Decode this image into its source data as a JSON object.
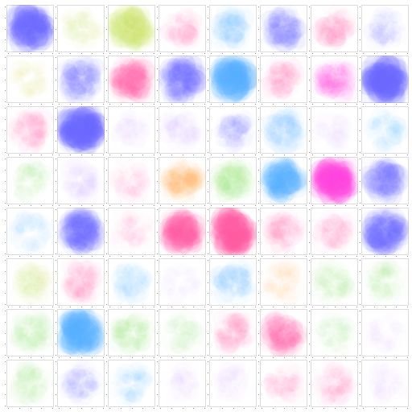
{
  "chart_data": {
    "type": "heatmap",
    "layout": "small-multiples",
    "grid": {
      "rows": 8,
      "cols": 8
    },
    "title": "",
    "xlabel": "",
    "ylabel": "",
    "axes": {
      "ticks_visible": true,
      "tick_labels_visible": false,
      "frame": true
    },
    "palette": {
      "blue": "#6f6cff",
      "sky": "#58b3ff",
      "pink": "#ff5fa8",
      "magenta": "#ff47e1",
      "lime": "#cfe66a",
      "green": "#8fe36b",
      "orange": "#ffb25a",
      "lavender": "#c9a9ff"
    },
    "panels": [
      {
        "row": 0,
        "col": 0,
        "color": "#6f6cff",
        "intensity": 0.72
      },
      {
        "row": 0,
        "col": 1,
        "color": "#cfe66a",
        "intensity": 0.1
      },
      {
        "row": 0,
        "col": 2,
        "color": "#cfe66a",
        "intensity": 0.55
      },
      {
        "row": 0,
        "col": 3,
        "color": "#ff5fa8",
        "intensity": 0.12
      },
      {
        "row": 0,
        "col": 4,
        "color": "#58b3ff",
        "intensity": 0.18
      },
      {
        "row": 0,
        "col": 5,
        "color": "#6f6cff",
        "intensity": 0.35
      },
      {
        "row": 0,
        "col": 6,
        "color": "#ff5fa8",
        "intensity": 0.18
      },
      {
        "row": 0,
        "col": 7,
        "color": "#6f6cff",
        "intensity": 0.08
      },
      {
        "row": 1,
        "col": 0,
        "color": "#cfe66a",
        "intensity": 0.07
      },
      {
        "row": 1,
        "col": 1,
        "color": "#6f6cff",
        "intensity": 0.35
      },
      {
        "row": 1,
        "col": 2,
        "color": "#ff5fa8",
        "intensity": 0.45
      },
      {
        "row": 1,
        "col": 3,
        "color": "#6f6cff",
        "intensity": 0.55
      },
      {
        "row": 1,
        "col": 4,
        "color": "#58b3ff",
        "intensity": 0.75
      },
      {
        "row": 1,
        "col": 5,
        "color": "#ff5fa8",
        "intensity": 0.15
      },
      {
        "row": 1,
        "col": 6,
        "color": "#ff47e1",
        "intensity": 0.28
      },
      {
        "row": 1,
        "col": 7,
        "color": "#6f6cff",
        "intensity": 0.88
      },
      {
        "row": 2,
        "col": 0,
        "color": "#ff5fa8",
        "intensity": 0.16
      },
      {
        "row": 2,
        "col": 1,
        "color": "#6f6cff",
        "intensity": 0.9
      },
      {
        "row": 2,
        "col": 2,
        "color": "#c9a9ff",
        "intensity": 0.06
      },
      {
        "row": 2,
        "col": 3,
        "color": "#c9a9ff",
        "intensity": 0.1
      },
      {
        "row": 2,
        "col": 4,
        "color": "#6f6cff",
        "intensity": 0.14
      },
      {
        "row": 2,
        "col": 5,
        "color": "#58b3ff",
        "intensity": 0.22
      },
      {
        "row": 2,
        "col": 6,
        "color": "#c9a9ff",
        "intensity": 0.03
      },
      {
        "row": 2,
        "col": 7,
        "color": "#58b3ff",
        "intensity": 0.1
      },
      {
        "row": 3,
        "col": 0,
        "color": "#8fe36b",
        "intensity": 0.1
      },
      {
        "row": 3,
        "col": 1,
        "color": "#c9a9ff",
        "intensity": 0.14
      },
      {
        "row": 3,
        "col": 2,
        "color": "#ff5fa8",
        "intensity": 0.06
      },
      {
        "row": 3,
        "col": 3,
        "color": "#ffb25a",
        "intensity": 0.32
      },
      {
        "row": 3,
        "col": 4,
        "color": "#8fe36b",
        "intensity": 0.25
      },
      {
        "row": 3,
        "col": 5,
        "color": "#58b3ff",
        "intensity": 0.62
      },
      {
        "row": 3,
        "col": 6,
        "color": "#ff47e1",
        "intensity": 0.82
      },
      {
        "row": 3,
        "col": 7,
        "color": "#6f6cff",
        "intensity": 0.42
      },
      {
        "row": 4,
        "col": 0,
        "color": "#58b3ff",
        "intensity": 0.08
      },
      {
        "row": 4,
        "col": 1,
        "color": "#6f6cff",
        "intensity": 0.58
      },
      {
        "row": 4,
        "col": 2,
        "color": "#ff5fa8",
        "intensity": 0.03
      },
      {
        "row": 4,
        "col": 3,
        "color": "#ff5fa8",
        "intensity": 0.65
      },
      {
        "row": 4,
        "col": 4,
        "color": "#ff5fa8",
        "intensity": 0.85
      },
      {
        "row": 4,
        "col": 5,
        "color": "#ff5fa8",
        "intensity": 0.18
      },
      {
        "row": 4,
        "col": 6,
        "color": "#ff5fa8",
        "intensity": 0.12
      },
      {
        "row": 4,
        "col": 7,
        "color": "#6f6cff",
        "intensity": 0.62
      },
      {
        "row": 5,
        "col": 0,
        "color": "#cfe66a",
        "intensity": 0.14
      },
      {
        "row": 5,
        "col": 1,
        "color": "#ff5fa8",
        "intensity": 0.16
      },
      {
        "row": 5,
        "col": 2,
        "color": "#58b3ff",
        "intensity": 0.1
      },
      {
        "row": 5,
        "col": 3,
        "color": "#c9a9ff",
        "intensity": 0.03
      },
      {
        "row": 5,
        "col": 4,
        "color": "#58b3ff",
        "intensity": 0.2
      },
      {
        "row": 5,
        "col": 5,
        "color": "#ffb25a",
        "intensity": 0.08
      },
      {
        "row": 5,
        "col": 6,
        "color": "#8fe36b",
        "intensity": 0.12
      },
      {
        "row": 5,
        "col": 7,
        "color": "#8fe36b",
        "intensity": 0.1
      },
      {
        "row": 6,
        "col": 0,
        "color": "#8fe36b",
        "intensity": 0.16
      },
      {
        "row": 6,
        "col": 1,
        "color": "#58b3ff",
        "intensity": 0.72
      },
      {
        "row": 6,
        "col": 2,
        "color": "#8fe36b",
        "intensity": 0.18
      },
      {
        "row": 6,
        "col": 3,
        "color": "#8fe36b",
        "intensity": 0.06
      },
      {
        "row": 6,
        "col": 4,
        "color": "#ff5fa8",
        "intensity": 0.18
      },
      {
        "row": 6,
        "col": 5,
        "color": "#ff5fa8",
        "intensity": 0.42
      },
      {
        "row": 6,
        "col": 6,
        "color": "#8fe36b",
        "intensity": 0.06
      },
      {
        "row": 6,
        "col": 7,
        "color": "#c9a9ff",
        "intensity": 0.03
      },
      {
        "row": 7,
        "col": 0,
        "color": "#8fe36b",
        "intensity": 0.12
      },
      {
        "row": 7,
        "col": 1,
        "color": "#6f6cff",
        "intensity": 0.12
      },
      {
        "row": 7,
        "col": 2,
        "color": "#58b3ff",
        "intensity": 0.1
      },
      {
        "row": 7,
        "col": 3,
        "color": "#c9a9ff",
        "intensity": 0.05
      },
      {
        "row": 7,
        "col": 4,
        "color": "#c9a9ff",
        "intensity": 0.06
      },
      {
        "row": 7,
        "col": 5,
        "color": "#ff5fa8",
        "intensity": 0.08
      },
      {
        "row": 7,
        "col": 6,
        "color": "#ff5fa8",
        "intensity": 0.12
      },
      {
        "row": 7,
        "col": 7,
        "color": "#c9a9ff",
        "intensity": 0.04
      }
    ]
  }
}
